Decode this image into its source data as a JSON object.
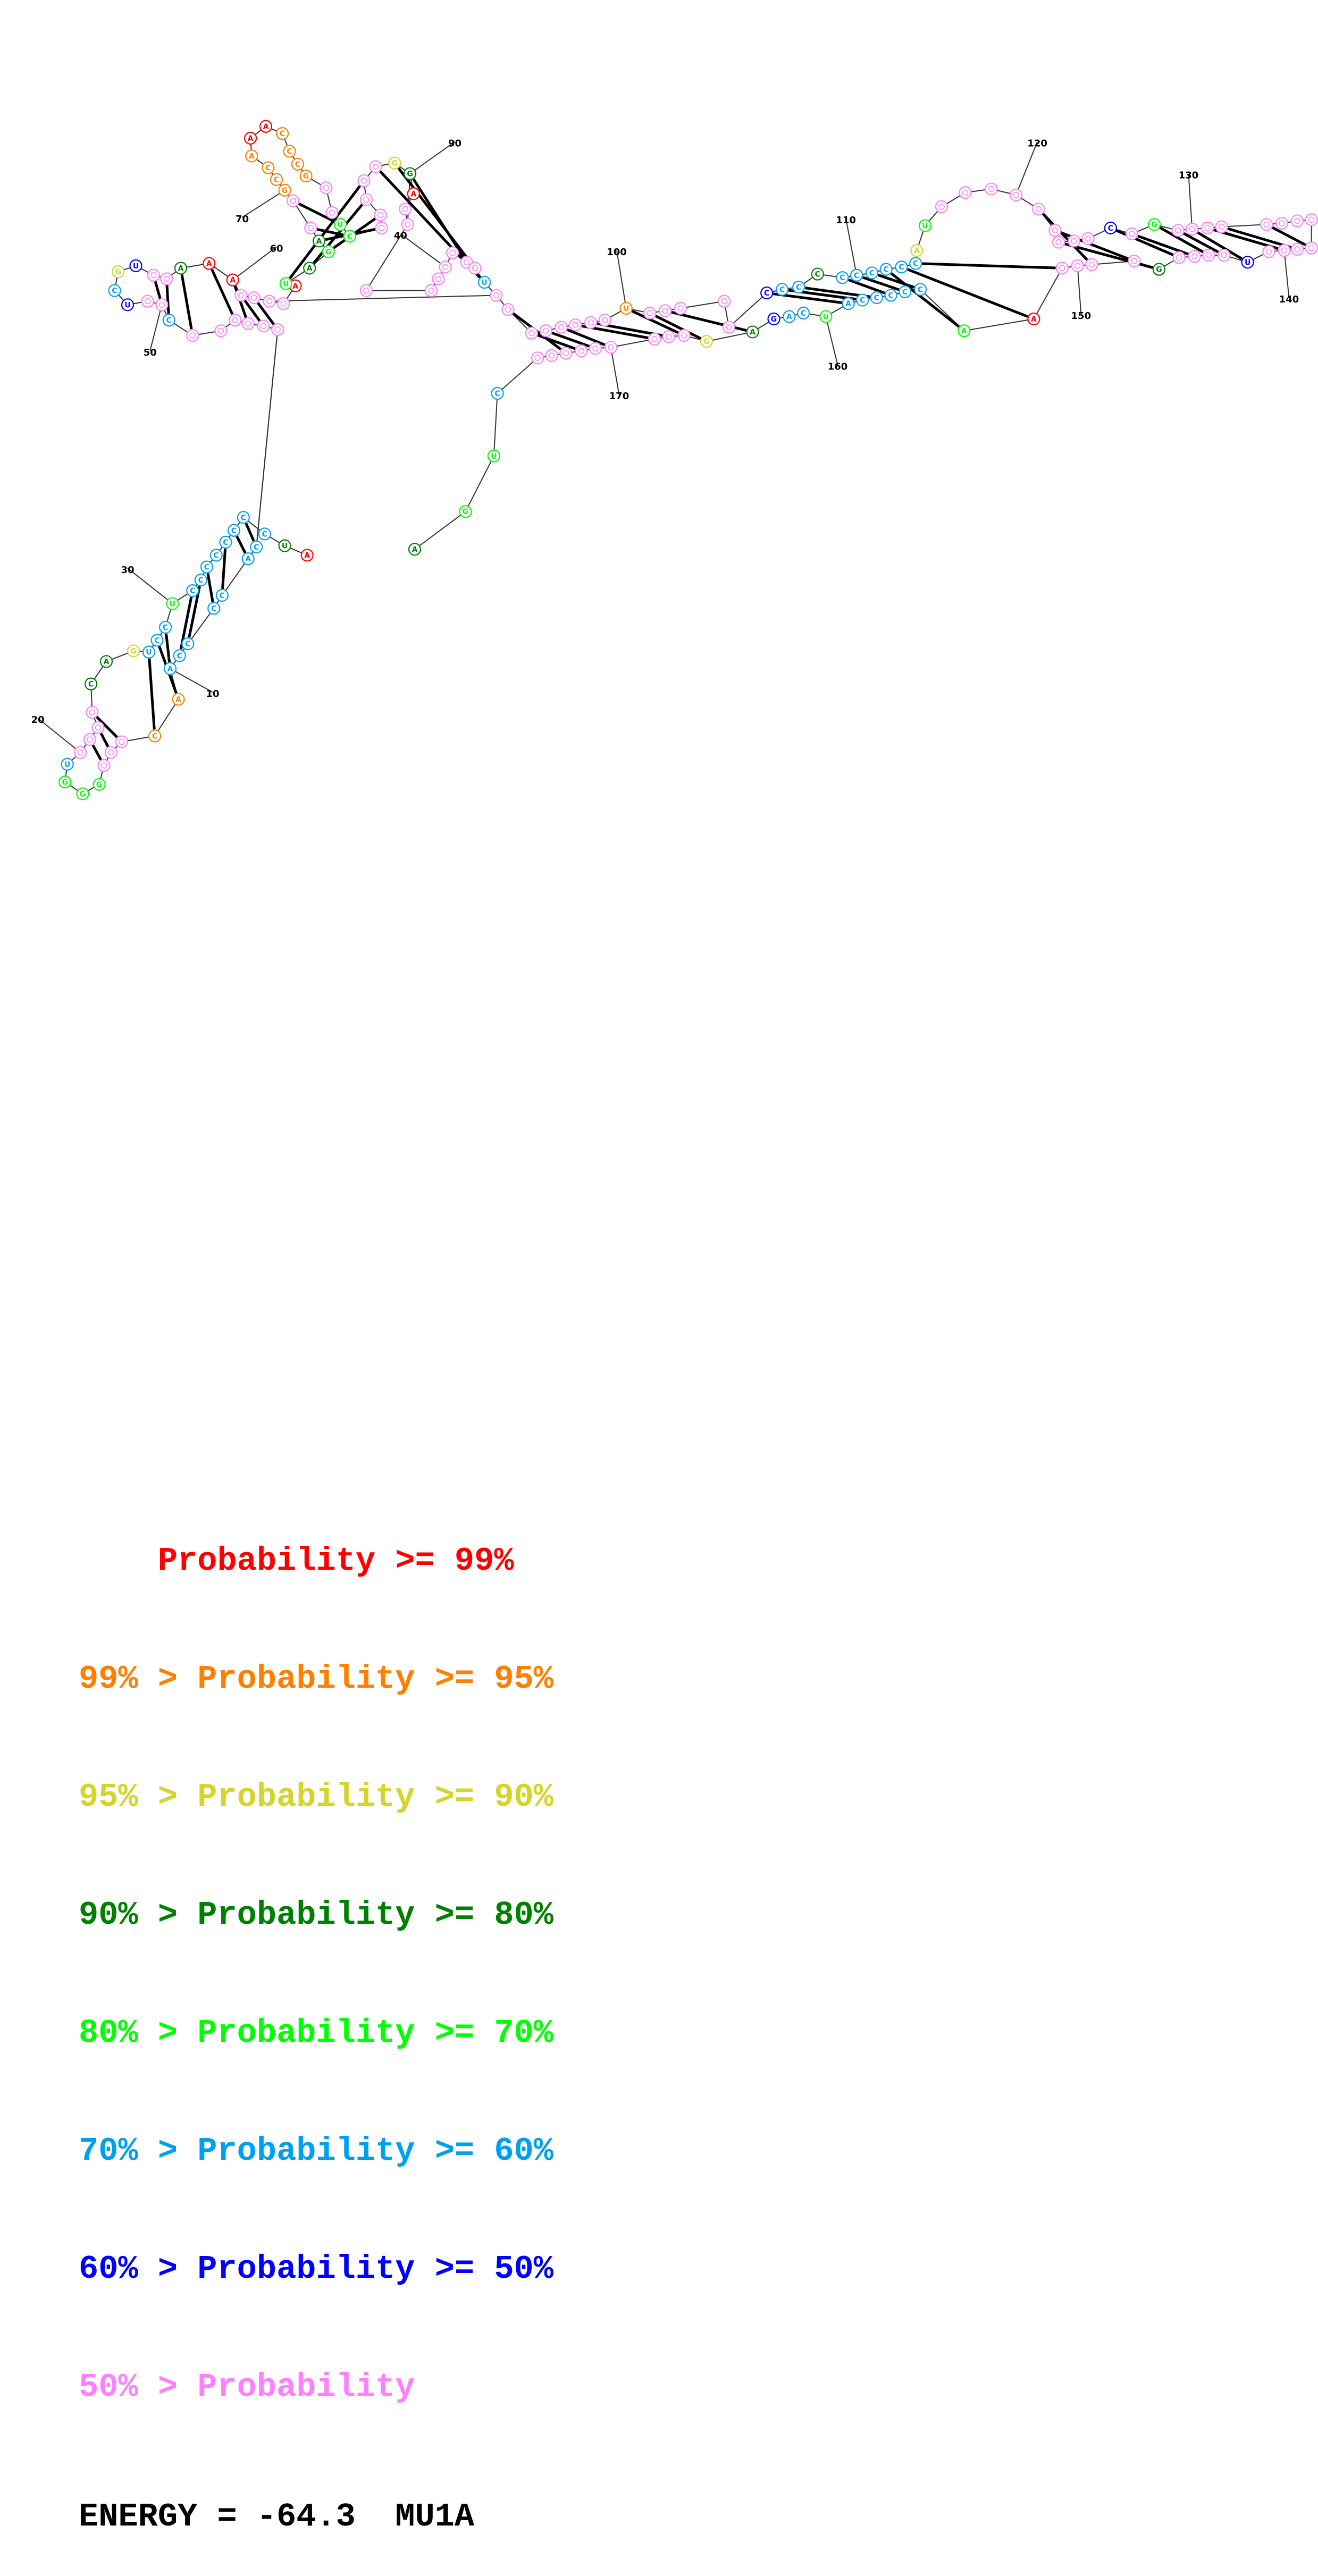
{
  "diagram": {
    "ticks": [
      "10",
      "20",
      "30",
      "40",
      "50",
      "60",
      "70",
      "90",
      "100",
      "110",
      "120",
      "130",
      "140",
      "150",
      "160",
      "170"
    ],
    "colors": {
      "red": "#ff0000",
      "orange": "#ff8000",
      "yellow": "#d4d42a",
      "darkgreen": "#008000",
      "green": "#00ff00",
      "cyan": "#00a0f0",
      "blue": "#0000ff",
      "pink": "#ff80ff"
    }
  },
  "legend": {
    "rows": [
      {
        "prefix": "    ",
        "range": "Probability >= 99%",
        "color": "#ff0000"
      },
      {
        "prefix": "99% > ",
        "range": "Probability >= 95%",
        "color": "#ff8000"
      },
      {
        "prefix": "95% > ",
        "range": "Probability >= 90%",
        "color": "#d4d42a"
      },
      {
        "prefix": "90% > ",
        "range": "Probability >= 80%",
        "color": "#008000"
      },
      {
        "prefix": "80% > ",
        "range": "Probability >= 70%",
        "color": "#00ff00"
      },
      {
        "prefix": "70% > ",
        "range": "Probability >= 60%",
        "color": "#00a0f0"
      },
      {
        "prefix": "60% > ",
        "range": "Probability >= 50%",
        "color": "#0000ff"
      },
      {
        "prefix": "50% > ",
        "range": "Probability",
        "color": "#ff80ff"
      }
    ],
    "energy": "ENERGY = -64.3  MU1A"
  }
}
